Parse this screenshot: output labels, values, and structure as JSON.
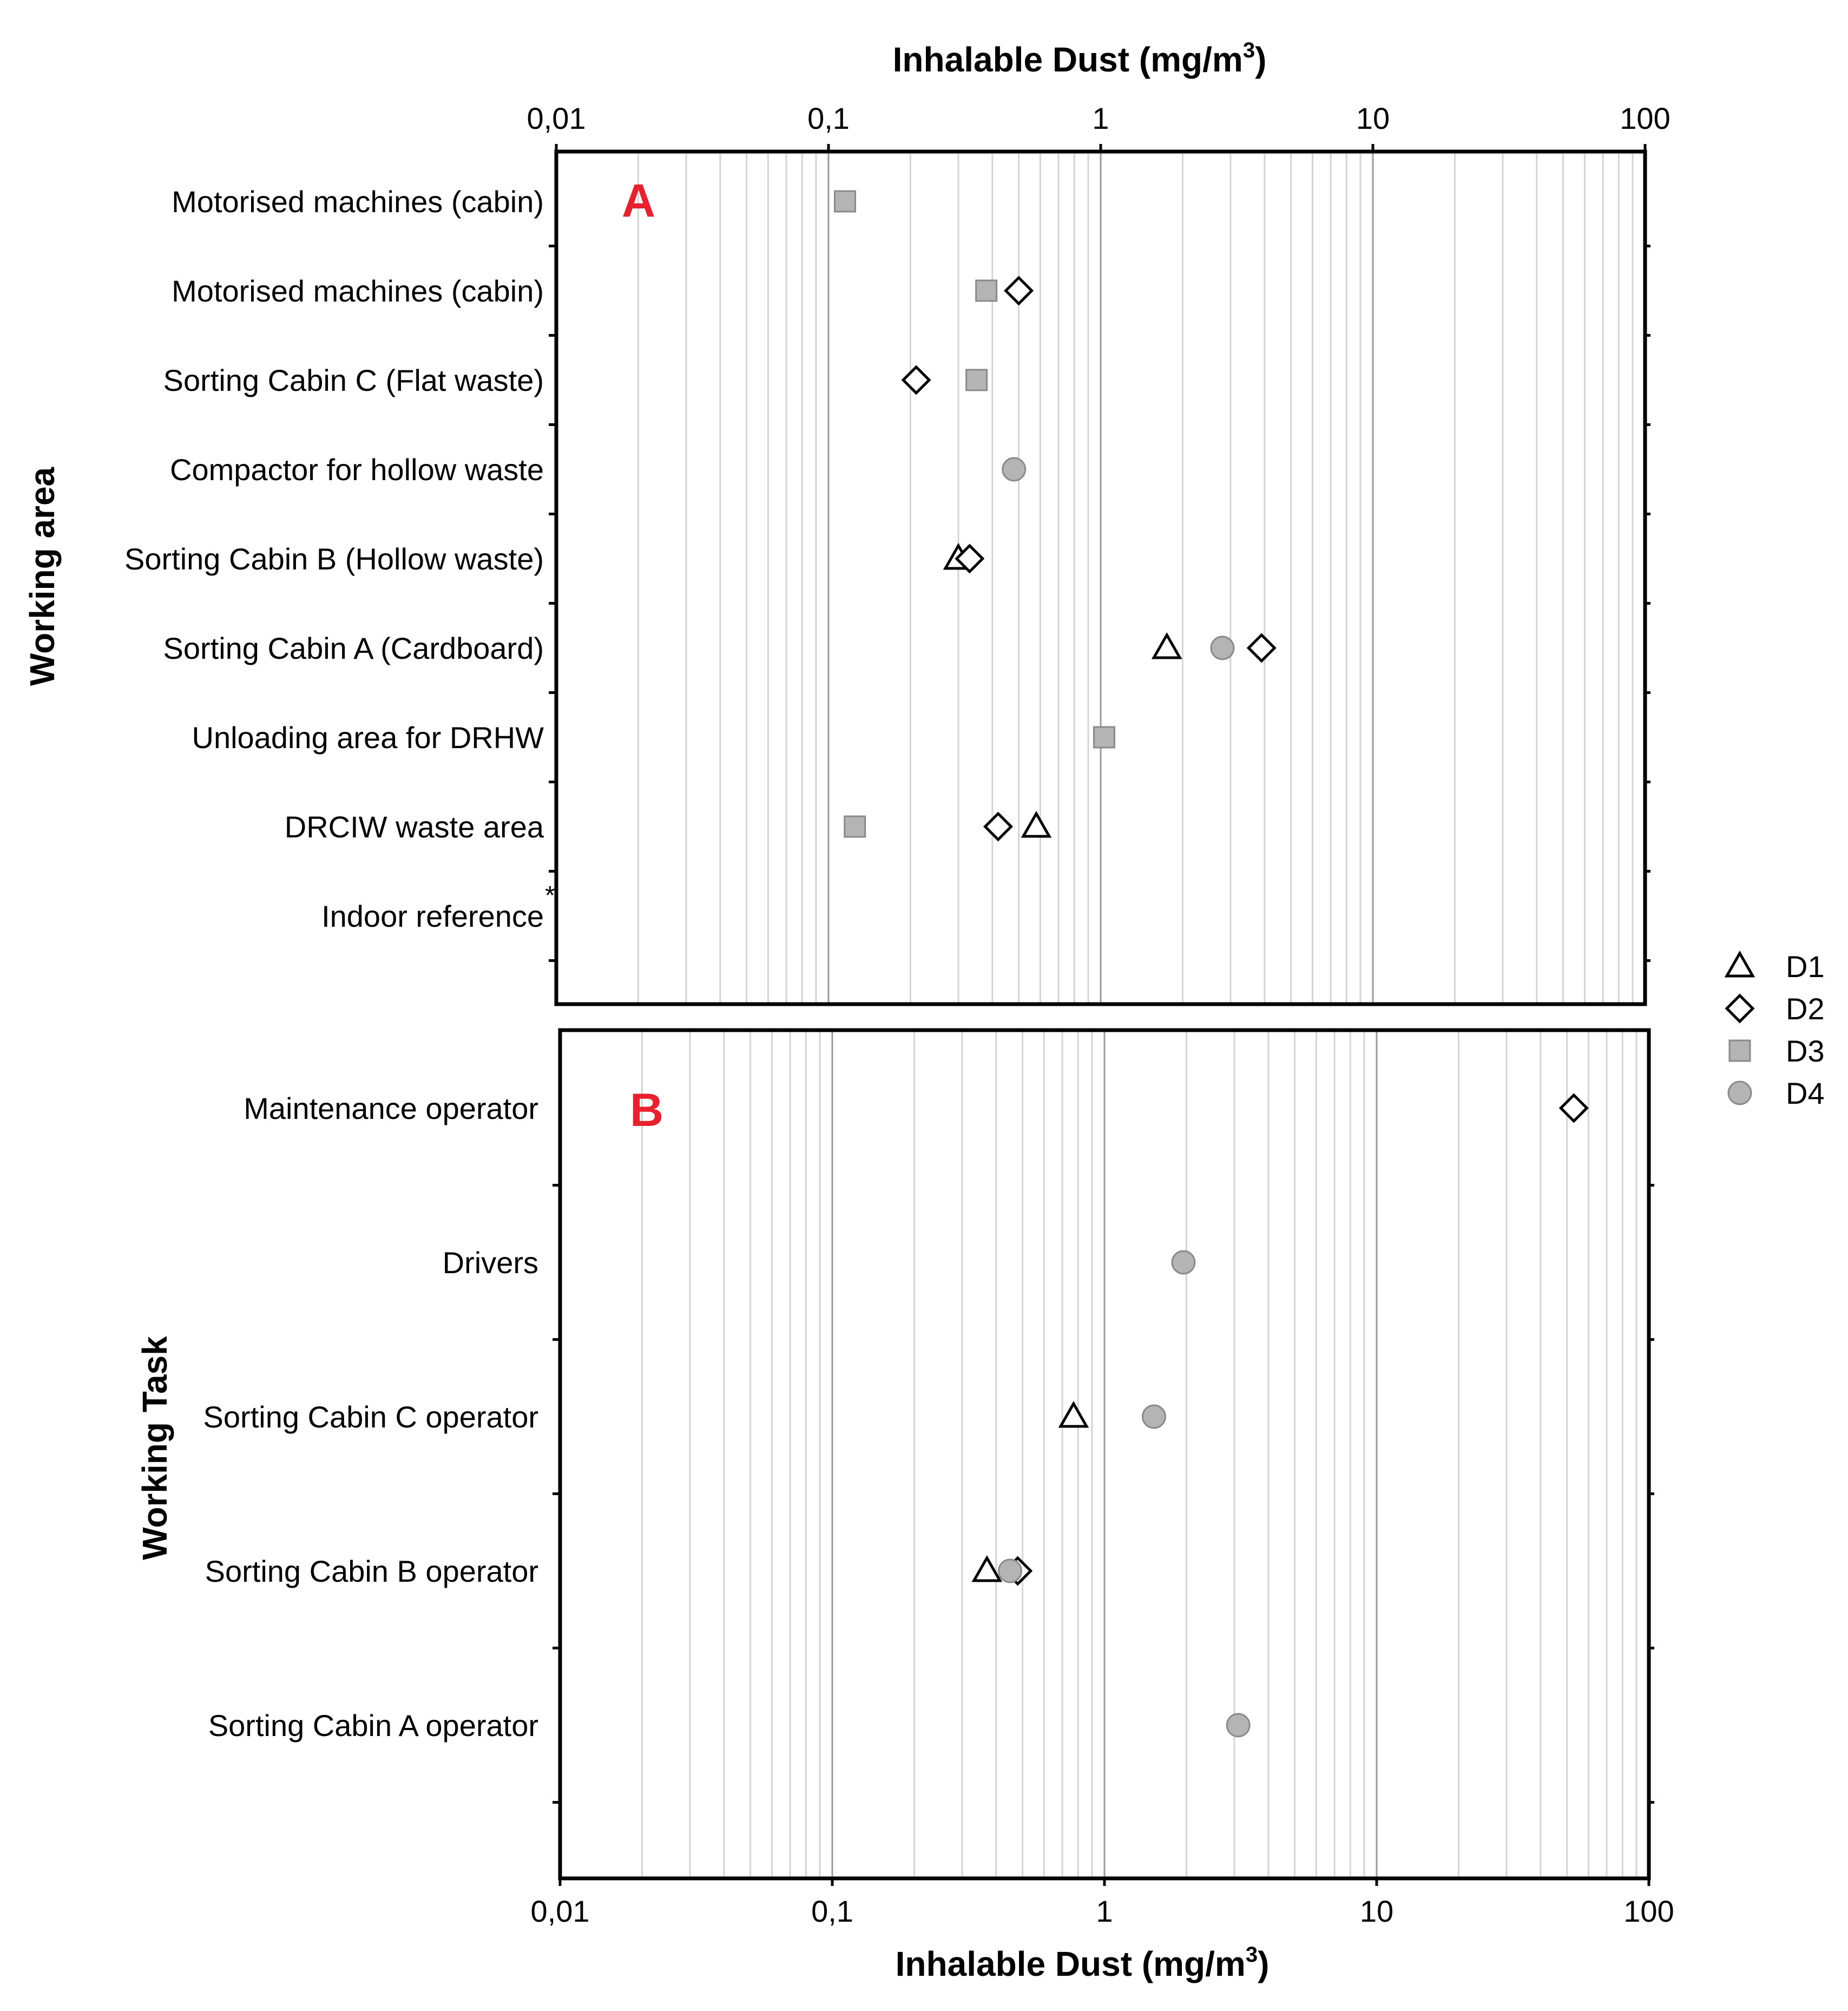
{
  "chart_data": [
    {
      "type": "scatter",
      "panel_label": "A",
      "x_title": "Inhalable Dust (mg/m",
      "x_title_sup": "3",
      "x_title_end": ")",
      "ylabel": "Working area",
      "x_scale": "log",
      "xlim": [
        0.01,
        100
      ],
      "x_ticks": [
        "0,01",
        "0,1",
        "1",
        "10",
        "100"
      ],
      "grid": "vertical minor and major",
      "categories": [
        "Motorised machines (cabin)",
        "Motorised machines (cabin)",
        "Sorting Cabin C (Flat waste)",
        "Compactor for hollow waste",
        "Sorting Cabin B (Hollow waste)",
        "Sorting Cabin A (Cardboard)",
        "Unloading area for DRHW",
        "DRCIW waste area",
        "Indoor reference"
      ],
      "category_notes": [
        "",
        "",
        "",
        "",
        "",
        "",
        "",
        "",
        "*"
      ],
      "series": [
        {
          "name": "D1",
          "values": [
            null,
            null,
            null,
            null,
            0.3,
            1.75,
            null,
            0.58,
            null
          ]
        },
        {
          "name": "D2",
          "values": [
            null,
            0.5,
            0.21,
            null,
            0.33,
            3.9,
            null,
            0.42,
            null
          ]
        },
        {
          "name": "D3",
          "values": [
            0.115,
            0.38,
            0.35,
            null,
            null,
            null,
            1.03,
            0.125,
            null
          ]
        },
        {
          "name": "D4",
          "values": [
            null,
            null,
            null,
            0.48,
            null,
            2.8,
            null,
            null,
            null
          ]
        }
      ]
    },
    {
      "type": "scatter",
      "panel_label": "B",
      "x_title": "Inhalable Dust (mg/m",
      "x_title_sup": "3",
      "x_title_end": ")",
      "ylabel": "Working Task",
      "x_scale": "log",
      "xlim": [
        0.01,
        100
      ],
      "x_ticks": [
        "0,01",
        "0,1",
        "1",
        "10",
        "100"
      ],
      "grid": "vertical minor and major",
      "categories": [
        "Maintenance operator",
        "Drivers",
        "Sorting Cabin C operator",
        "Sorting Cabin B operator",
        "Sorting Cabin A operator"
      ],
      "series": [
        {
          "name": "D1",
          "values": [
            null,
            null,
            0.77,
            0.37,
            null
          ]
        },
        {
          "name": "D2",
          "values": [
            53,
            null,
            null,
            0.48,
            null
          ]
        },
        {
          "name": "D3",
          "values": [
            null,
            null,
            null,
            null,
            null
          ]
        },
        {
          "name": "D4",
          "values": [
            null,
            1.95,
            1.52,
            0.45,
            3.1
          ]
        }
      ]
    }
  ],
  "legend": {
    "position": "right",
    "items": [
      {
        "label": "D1",
        "marker": "triangle-open"
      },
      {
        "label": "D2",
        "marker": "diamond-open"
      },
      {
        "label": "D3",
        "marker": "square-gray"
      },
      {
        "label": "D4",
        "marker": "circle-gray"
      }
    ]
  },
  "colors": {
    "panel_label": "#e8212f",
    "marker_fill_gray": "#b4b4b4",
    "marker_stroke_gray": "#8a8a8a",
    "grid_minor": "#d4d4d4",
    "grid_major": "#9a9a9a"
  }
}
